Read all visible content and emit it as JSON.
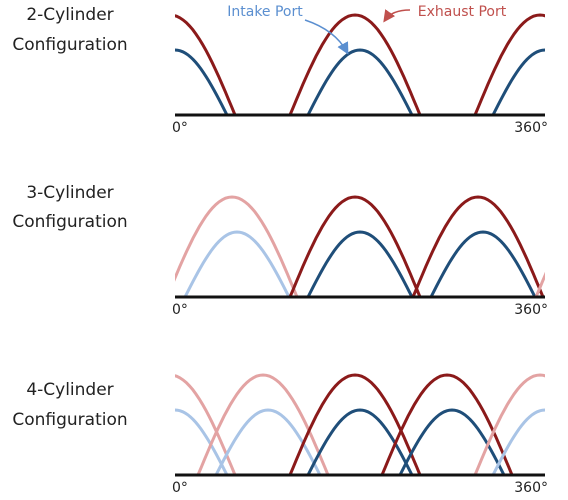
{
  "legend": {
    "intake": "Intake Port",
    "exhaust": "Exhaust Port"
  },
  "panels": [
    {
      "label_line1": "2-Cylinder",
      "label_line2": "Configuration",
      "start_label": "0°",
      "end_label": "360°"
    },
    {
      "label_line1": "3-Cylinder",
      "label_line2": "Configuration",
      "start_label": "0°",
      "end_label": "360°"
    },
    {
      "label_line1": "4-Cylinder",
      "label_line2": "Configuration",
      "start_label": "0°",
      "end_label": "360°"
    }
  ]
}
